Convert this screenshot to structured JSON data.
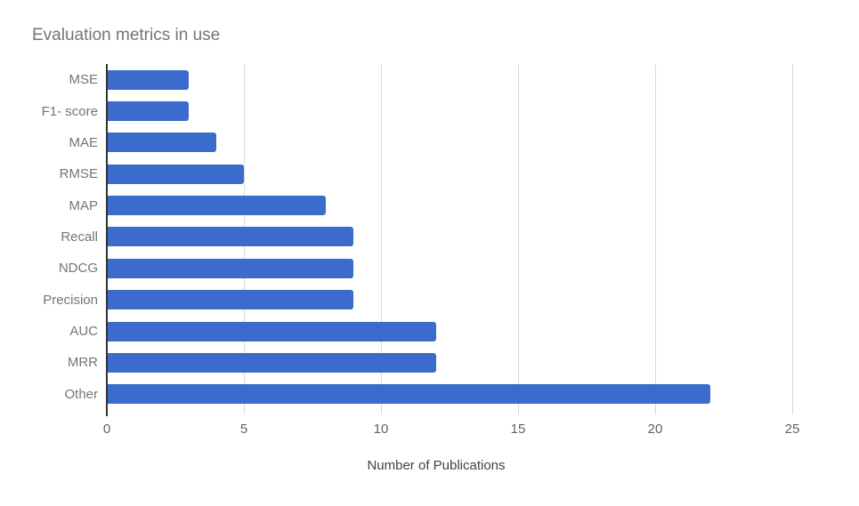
{
  "chart_data": {
    "type": "bar",
    "orientation": "horizontal",
    "title": "Evaluation metrics in use",
    "xlabel": "Number of Publications",
    "ylabel": "",
    "categories": [
      "MSE",
      "F1- score",
      "MAE",
      "RMSE",
      "MAP",
      "Recall",
      "NDCG",
      "Precision",
      "AUC",
      "MRR",
      "Other"
    ],
    "values": [
      3,
      3,
      4,
      5,
      8,
      9,
      9,
      9,
      12,
      12,
      22
    ],
    "xlim": [
      0,
      25
    ],
    "xticks": [
      0,
      5,
      10,
      15,
      20,
      25
    ],
    "grid": "vertical-gridlines-on",
    "legend": "none",
    "colors": {
      "bar": "#3b6ccb",
      "title": "#757575",
      "category_label": "#757575",
      "tick_label": "#616161",
      "axis_title": "#424242",
      "gridline": "#d9d9d9",
      "axis_line": "#333333",
      "background": "#ffffff"
    }
  }
}
